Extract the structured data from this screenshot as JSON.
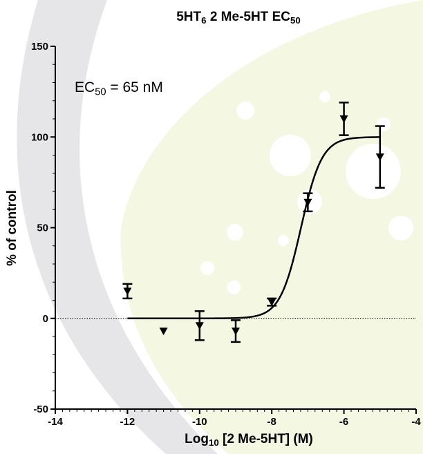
{
  "chart_data": {
    "type": "scatter",
    "title_parts": {
      "main": "5HT",
      "sub1": "6",
      "mid": " 2 Me-5HT EC",
      "sub2": "50"
    },
    "xlabel_parts": {
      "pre": "Log",
      "sub": "10",
      "post": " [2 Me-5HT] (M)"
    },
    "ylabel": "% of control",
    "annotation": {
      "pre": "EC",
      "sub": "50",
      "post": " = 65 nM"
    },
    "xlim": [
      -14,
      -4
    ],
    "ylim": [
      -50,
      150
    ],
    "x_ticks": [
      -14,
      -12,
      -10,
      -8,
      -6,
      -4
    ],
    "y_ticks": [
      -50,
      0,
      50,
      100,
      150
    ],
    "marker": "triangle-down",
    "points": [
      {
        "x": -12,
        "y": 15,
        "error": 4
      },
      {
        "x": -11,
        "y": -7,
        "error": 0
      },
      {
        "x": -10,
        "y": -4,
        "error": 8
      },
      {
        "x": -9,
        "y": -7,
        "error": 6
      },
      {
        "x": -8,
        "y": 9,
        "error": 2
      },
      {
        "x": -7,
        "y": 64,
        "error": 5
      },
      {
        "x": -6,
        "y": 110,
        "error": 9
      },
      {
        "x": -5,
        "y": 89,
        "error": 17
      }
    ],
    "fit": {
      "model": "sigmoidal dose-response",
      "bottom": 0,
      "top": 100,
      "log_ec50": -7.19,
      "hill_slope": 1.5,
      "x_range": [
        -12,
        -5
      ]
    },
    "baseline": 0,
    "background_colors": {
      "arc": "#e6e6e8",
      "leaf": "#f4f7e1",
      "spots": "#ffffff"
    }
  }
}
